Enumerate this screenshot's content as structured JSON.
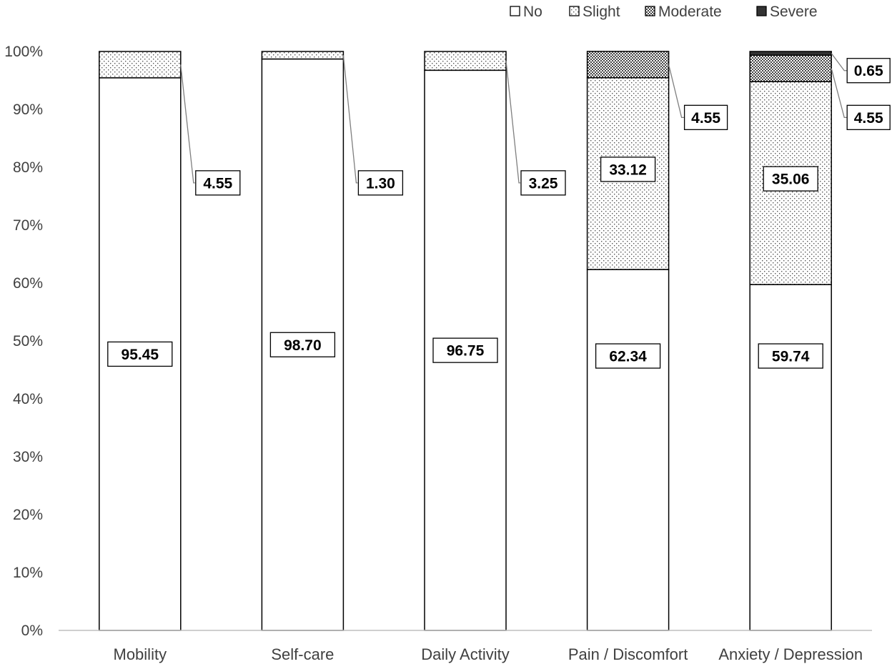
{
  "chart_data": {
    "type": "bar",
    "stacked": true,
    "categories": [
      "Mobility",
      "Self-care",
      "Daily Activity",
      "Pain / Discomfort",
      "Anxiety / Depression"
    ],
    "series": [
      {
        "name": "No",
        "values": [
          95.45,
          98.7,
          96.75,
          62.34,
          59.74
        ]
      },
      {
        "name": "Slight",
        "values": [
          4.55,
          1.3,
          3.25,
          33.12,
          35.06
        ]
      },
      {
        "name": "Moderate",
        "values": [
          0,
          0,
          0,
          4.55,
          4.55
        ]
      },
      {
        "name": "Severe",
        "values": [
          0,
          0,
          0,
          0,
          0.65
        ]
      }
    ],
    "data_labels": [
      [
        "95.45",
        "4.55",
        null,
        null
      ],
      [
        "98.70",
        "1.30",
        null,
        null
      ],
      [
        "96.75",
        "3.25",
        null,
        null
      ],
      [
        "62.34",
        "33.12",
        "4.55",
        null
      ],
      [
        "59.74",
        "35.06",
        "4.55",
        "0.65"
      ]
    ],
    "yticks": [
      "0%",
      "10%",
      "20%",
      "30%",
      "40%",
      "50%",
      "60%",
      "70%",
      "80%",
      "90%",
      "100%"
    ],
    "ylim": [
      0,
      100
    ],
    "legend_position": "top-right",
    "grid": false,
    "patterns": [
      "empty",
      "sparse-dots",
      "dense-dots",
      "solid"
    ],
    "colors": {
      "outline": "#000000",
      "severe": "#333333",
      "axis": "#bfbfbf",
      "leader": "#7f7f7f"
    }
  }
}
